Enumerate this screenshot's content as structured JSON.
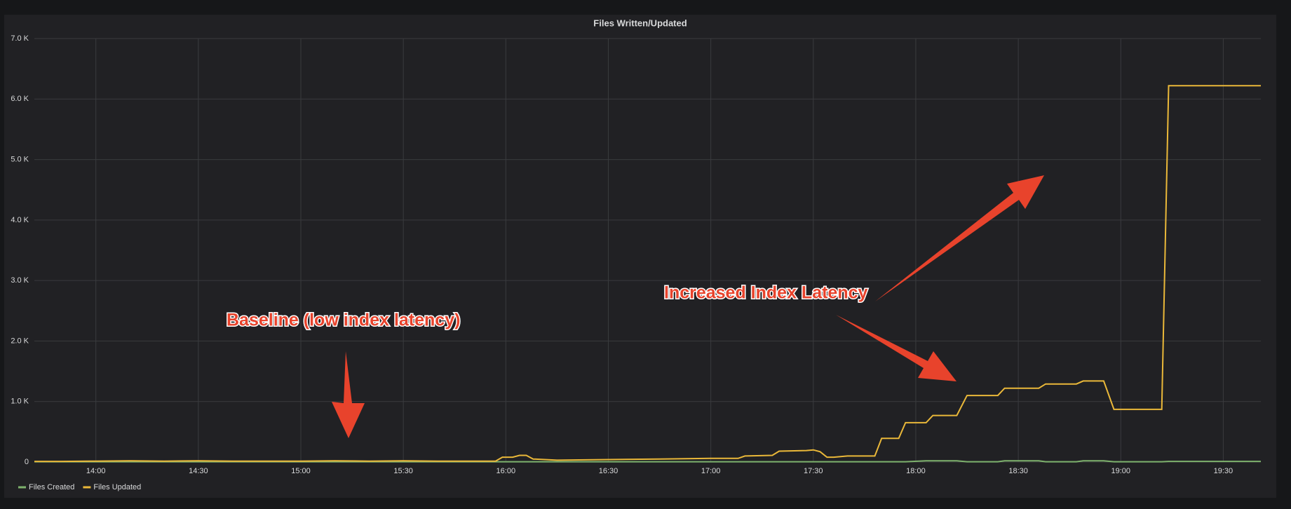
{
  "chart_data": {
    "type": "line",
    "title": "Files Written/Updated",
    "x": [
      "13:42",
      "13:50",
      "14:00",
      "14:10",
      "14:20",
      "14:30",
      "14:40",
      "14:50",
      "15:00",
      "15:10",
      "15:20",
      "15:30",
      "15:40",
      "15:50",
      "15:57",
      "15:59",
      "16:02",
      "16:04",
      "16:06",
      "16:08",
      "16:15",
      "16:30",
      "16:45",
      "17:00",
      "17:08",
      "17:10",
      "17:18",
      "17:20",
      "17:28",
      "17:30",
      "17:32",
      "17:34",
      "17:36",
      "17:40",
      "17:48",
      "17:50",
      "17:55",
      "17:57",
      "18:03",
      "18:05",
      "18:12",
      "18:15",
      "18:24",
      "18:26",
      "18:36",
      "18:38",
      "18:47",
      "18:49",
      "18:55",
      "18:58",
      "19:12",
      "19:14",
      "19:41"
    ],
    "series": [
      {
        "name": "Files Created",
        "color": "#7eb26d",
        "values": [
          5,
          5,
          5,
          5,
          5,
          5,
          5,
          5,
          5,
          5,
          5,
          5,
          5,
          5,
          5,
          5,
          5,
          5,
          5,
          5,
          5,
          5,
          5,
          5,
          5,
          5,
          5,
          5,
          5,
          5,
          5,
          5,
          5,
          5,
          5,
          5,
          5,
          5,
          20,
          20,
          20,
          5,
          5,
          20,
          20,
          5,
          5,
          20,
          20,
          5,
          5,
          10,
          10
        ]
      },
      {
        "name": "Files Updated",
        "color": "#eab839",
        "values": [
          10,
          10,
          15,
          20,
          15,
          20,
          15,
          15,
          15,
          20,
          15,
          20,
          15,
          15,
          15,
          80,
          80,
          110,
          110,
          50,
          30,
          40,
          50,
          60,
          60,
          100,
          110,
          180,
          190,
          200,
          170,
          80,
          80,
          100,
          100,
          390,
          390,
          650,
          650,
          770,
          770,
          1100,
          1100,
          1220,
          1220,
          1290,
          1290,
          1340,
          1340,
          870,
          870,
          6220,
          6220
        ]
      }
    ],
    "xlim": [
      "13:42",
      "19:41"
    ],
    "xticks": [
      "14:00",
      "14:30",
      "15:00",
      "15:30",
      "16:00",
      "16:30",
      "17:00",
      "17:30",
      "18:00",
      "18:30",
      "19:00",
      "19:30"
    ],
    "ylim": [
      0,
      7000
    ],
    "yticks": [
      0,
      {
        "value": 1000,
        "label": "1.0 K"
      },
      {
        "value": 2000,
        "label": "2.0 K"
      },
      {
        "value": 3000,
        "label": "3.0 K"
      },
      {
        "value": 4000,
        "label": "4.0 K"
      },
      {
        "value": 5000,
        "label": "5.0 K"
      },
      {
        "value": 6000,
        "label": "6.0 K"
      },
      {
        "value": 7000,
        "label": "7.0 K"
      }
    ],
    "grid": true,
    "annotations": [
      "Baseline (low index latency)",
      "Increased Index Latency"
    ]
  }
}
